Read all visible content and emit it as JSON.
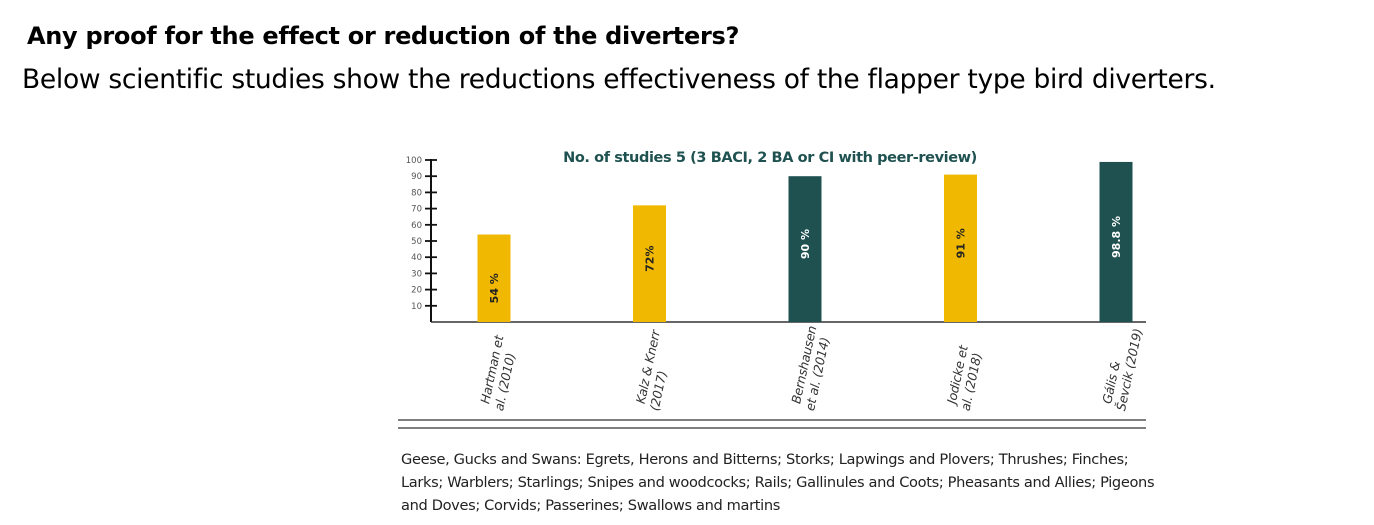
{
  "page": {
    "heading": "Any proof for the effect or reduction of the diverters?",
    "subheading": "Below scientific studies show the reductions effectiveness of the flapper type bird diverters.",
    "caption": "Geese, Gucks and Swans: Egrets, Herons and Bitterns; Storks; Lapwings and Plovers; Thrushes; Finches; Larks; Warblers; Starlings; Snipes and woodcocks; Rails; Gallinules and Coots; Pheasants and Allies; Pigeons and Doves; Corvids; Passerines; Swallows and martins"
  },
  "chart_data": {
    "type": "bar",
    "title": "No. of studies 5 (3 BACI, 2 BA or CI with peer-review)",
    "xlabel": "",
    "ylabel": "",
    "ylim": [
      0,
      100
    ],
    "yticks": [
      10,
      20,
      30,
      40,
      50,
      60,
      70,
      80,
      90,
      100
    ],
    "grid": false,
    "categories": [
      [
        "Hartman et",
        "al. (2010)"
      ],
      [
        "Kalz & Knerr",
        "(2017)"
      ],
      [
        "Bernshausen",
        "et al. (2014)"
      ],
      [
        "Jodicke et",
        "al. (2018)"
      ],
      [
        "Gális &",
        "Ševcik (2019)"
      ]
    ],
    "values": [
      54,
      72,
      90,
      91,
      98.8
    ],
    "data_labels": [
      "54 %",
      "72%",
      "90 %",
      "91 %",
      "98.8 %"
    ],
    "bar_colors": [
      "#f0b800",
      "#f0b800",
      "#1e5150",
      "#f0b800",
      "#1e5150"
    ],
    "label_colors": [
      "#222222",
      "#222222",
      "#ffffff",
      "#222222",
      "#ffffff"
    ],
    "title_color": "#1e5150"
  }
}
